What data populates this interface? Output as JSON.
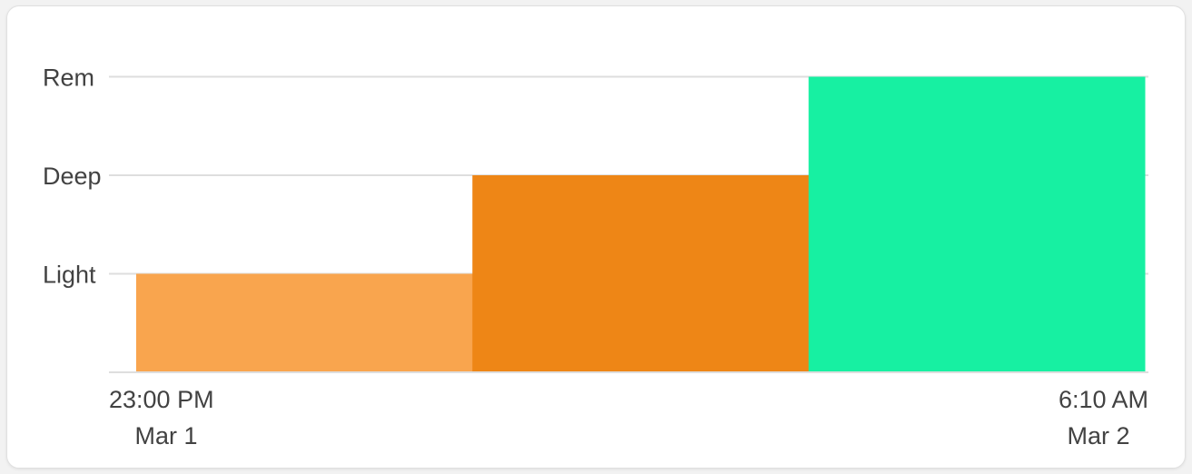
{
  "chart_data": {
    "type": "bar",
    "subtype": "step-timeline",
    "y_levels": [
      "Light",
      "Deep",
      "Rem"
    ],
    "segments": [
      {
        "stage": "Light",
        "level": 1,
        "color": "#f9a54e"
      },
      {
        "stage": "Deep",
        "level": 2,
        "color": "#ee8616"
      },
      {
        "stage": "Rem",
        "level": 3,
        "color": "#17f0a2"
      }
    ],
    "x_start": {
      "time": "23:00 PM",
      "date": "Mar 1"
    },
    "x_end": {
      "time": "6:10 AM",
      "date": "Mar 2"
    },
    "grid": true,
    "colors": {
      "gridline": "#dedede",
      "axis_text": "#424242"
    }
  }
}
